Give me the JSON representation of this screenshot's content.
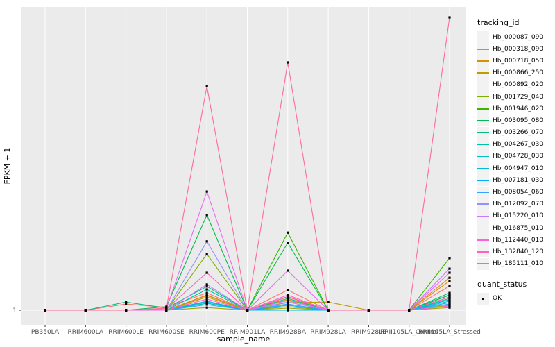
{
  "figure": {
    "background": "#FFFFFF",
    "panel_background": "#EBEBEB",
    "gridline_color": "#FFFFFF",
    "tick_color": "#333333",
    "tick_label_color": "#4D4D4D",
    "axis_title_color": "#000000",
    "point_color": "#000000",
    "legend_key_background": "#F2F2F2"
  },
  "legend": {
    "tracking_title": "tracking_id",
    "quant_title": "quant_status",
    "quant_items": [
      {
        "label": "OK",
        "marker": "black-square"
      }
    ]
  },
  "chart_data": {
    "type": "line",
    "title": "",
    "xlabel": "sample_name",
    "ylabel": "FPKM + 1",
    "x_categories": [
      "PB350LA",
      "RRIM600LA",
      "RRIM600LE",
      "RRIM600SE",
      "RRIM600PE",
      "RRIM901LA",
      "RRIM928BA",
      "RRIM928LA",
      "RRIM928LE",
      "RRII105LA_Control",
      "RRII105LA_Stressed"
    ],
    "y_axis": {
      "scale": "log",
      "visible_ticks": [
        "1"
      ],
      "baseline_value": 1,
      "value_units": "relative height above FPKM+1=1 baseline (1.0 = top of panel)",
      "ylim": [
        0,
        1
      ]
    },
    "grid": "vertical gridline per category + horizontal gridline at y=1",
    "legend_position": "right",
    "point_marker": "black square (quant_status = OK) at every sample point",
    "series": [
      {
        "name": "Hb_000087_090",
        "color": "#F8766D",
        "values": [
          0,
          0,
          0.021,
          0.01,
          0.059,
          0,
          0.069,
          0,
          0,
          0,
          0.083
        ]
      },
      {
        "name": "Hb_000318_090",
        "color": "#EA8331",
        "values": [
          0,
          0,
          0,
          0,
          0.052,
          0,
          0.045,
          0,
          0,
          0,
          0.111
        ]
      },
      {
        "name": "Hb_000718_050",
        "color": "#D89000",
        "values": [
          0,
          0,
          0,
          0,
          0.05,
          0,
          0.036,
          0,
          0,
          0,
          0.1
        ]
      },
      {
        "name": "Hb_000866_250",
        "color": "#C09B00",
        "values": [
          0,
          0,
          0,
          0,
          0.045,
          0,
          0.026,
          0.028,
          0,
          0,
          0.017
        ]
      },
      {
        "name": "Hb_000892_020",
        "color": "#A3A500",
        "values": [
          0,
          0,
          0,
          0,
          0.009,
          0,
          0.007,
          0,
          0,
          0,
          0.009
        ]
      },
      {
        "name": "Hb_001729_040",
        "color": "#7CAE00",
        "values": [
          0,
          0,
          0,
          0,
          0.192,
          0,
          0.012,
          0,
          0,
          0,
          0.052
        ]
      },
      {
        "name": "Hb_001946_020",
        "color": "#39B600",
        "values": [
          0,
          0,
          0,
          0,
          0.024,
          0,
          0.265,
          0,
          0,
          0,
          0.178
        ]
      },
      {
        "name": "Hb_003095_080",
        "color": "#00BB4E",
        "values": [
          0,
          0,
          0,
          0.012,
          0.325,
          0,
          0.23,
          0,
          0,
          0,
          0.052
        ]
      },
      {
        "name": "Hb_003266_070",
        "color": "#00BF7D",
        "values": [
          0,
          0,
          0.028,
          0.007,
          0.081,
          0,
          0.04,
          0,
          0,
          0,
          0.059
        ]
      },
      {
        "name": "Hb_004267_030",
        "color": "#00C1A3",
        "values": [
          0,
          0,
          0,
          0,
          0.071,
          0,
          0,
          0,
          0,
          0,
          0.04
        ]
      },
      {
        "name": "Hb_004728_030",
        "color": "#00BFC4",
        "values": [
          0,
          0,
          0,
          0,
          0.028,
          0,
          0,
          0,
          0,
          0,
          0.031
        ]
      },
      {
        "name": "Hb_004947_010",
        "color": "#00BAE0",
        "values": [
          0,
          0,
          0,
          0,
          0.024,
          0,
          0,
          0,
          0,
          0,
          0.026
        ]
      },
      {
        "name": "Hb_007181_030",
        "color": "#00B0F6",
        "values": [
          0,
          0,
          0,
          0,
          0.031,
          0,
          0.017,
          0,
          0,
          0,
          0.036
        ]
      },
      {
        "name": "Hb_008054_060",
        "color": "#35A2FF",
        "values": [
          0,
          0,
          0,
          0,
          0.019,
          0,
          0.021,
          0,
          0,
          0,
          0.021
        ]
      },
      {
        "name": "Hb_012092_070",
        "color": "#9590FF",
        "values": [
          0,
          0,
          0,
          0,
          0.235,
          0,
          0.028,
          0,
          0,
          0,
          0.045
        ]
      },
      {
        "name": "Hb_015220_010",
        "color": "#C77CFF",
        "values": [
          0,
          0,
          0,
          0,
          0.088,
          0,
          0.033,
          0,
          0,
          0,
          0.142
        ]
      },
      {
        "name": "Hb_016875_010",
        "color": "#E76BF3",
        "values": [
          0,
          0,
          0,
          0.005,
          0.405,
          0,
          0.135,
          0,
          0,
          0,
          0.128
        ]
      },
      {
        "name": "Hb_112440_010",
        "color": "#FA62DB",
        "values": [
          0,
          0,
          0,
          0,
          0.038,
          0,
          0.047,
          0,
          0,
          0,
          0.014
        ]
      },
      {
        "name": "Hb_132840_120",
        "color": "#FF62BC",
        "values": [
          0,
          0,
          0,
          0.005,
          0.128,
          0,
          0.052,
          0,
          0,
          0,
          0.045
        ]
      },
      {
        "name": "Hb_185111_010",
        "color": "#FF6A98",
        "values": [
          0,
          0,
          0,
          0.007,
          0.765,
          0,
          0.846,
          0,
          0,
          0,
          1.0
        ]
      }
    ]
  }
}
